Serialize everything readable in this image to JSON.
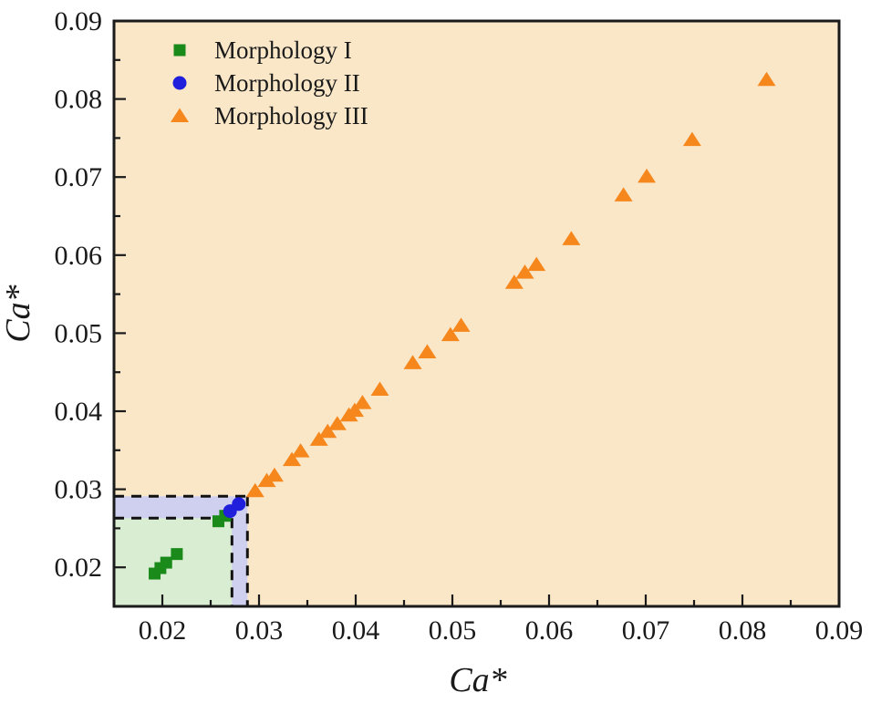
{
  "figure": {
    "background": "#FFFFFF",
    "axis_color": "#1A1A1A",
    "dashed_border_color": "#111111"
  },
  "chart_data": {
    "type": "scatter",
    "title": "",
    "xlabel": "Ca*",
    "ylabel": "Ca*",
    "xlim": [
      0.015,
      0.09
    ],
    "ylim": [
      0.015,
      0.09
    ],
    "x_ticks": [
      "0.02",
      "0.03",
      "0.04",
      "0.05",
      "0.06",
      "0.07",
      "0.08",
      "0.09"
    ],
    "x_tick_values": [
      0.02,
      0.03,
      0.04,
      0.05,
      0.06,
      0.07,
      0.08,
      0.09
    ],
    "y_ticks": [
      "0.02",
      "0.03",
      "0.04",
      "0.05",
      "0.06",
      "0.07",
      "0.08",
      "0.09"
    ],
    "y_tick_values": [
      0.02,
      0.03,
      0.04,
      0.05,
      0.06,
      0.07,
      0.08,
      0.09
    ],
    "minor_tick_step": 0.005,
    "grid": false,
    "plot_background": "#FAE7C8",
    "legend_position": "top-left-inside",
    "regions": [
      {
        "name": "region-morphology-ii",
        "fill": "#CFD0F0",
        "x_max": 0.0288,
        "y_max": 0.0291,
        "border": "dashed"
      },
      {
        "name": "region-morphology-i",
        "fill": "#D9EDD3",
        "x_max": 0.0272,
        "y_max": 0.0263,
        "border": "dashed"
      }
    ],
    "series": [
      {
        "name": "Morphology I",
        "key": "morphology-i",
        "marker": "square",
        "color": "#1A8A1A",
        "points": [
          [
            0.0192,
            0.0192
          ],
          [
            0.0198,
            0.0199
          ],
          [
            0.0204,
            0.0206
          ],
          [
            0.0215,
            0.0217
          ],
          [
            0.0258,
            0.0259
          ],
          [
            0.0265,
            0.0266
          ]
        ]
      },
      {
        "name": "Morphology II",
        "key": "morphology-ii",
        "marker": "circle",
        "color": "#1F1FDC",
        "points": [
          [
            0.027,
            0.0272
          ],
          [
            0.0279,
            0.0281
          ]
        ]
      },
      {
        "name": "Morphology III",
        "key": "morphology-iii",
        "marker": "triangle",
        "color": "#F6871C",
        "points": [
          [
            0.0296,
            0.0298
          ],
          [
            0.0308,
            0.0311
          ],
          [
            0.0316,
            0.0318
          ],
          [
            0.0334,
            0.0338
          ],
          [
            0.0343,
            0.0349
          ],
          [
            0.0362,
            0.0364
          ],
          [
            0.0371,
            0.0374
          ],
          [
            0.0381,
            0.0384
          ],
          [
            0.0393,
            0.0395
          ],
          [
            0.0399,
            0.0401
          ],
          [
            0.0407,
            0.0411
          ],
          [
            0.0425,
            0.0428
          ],
          [
            0.0459,
            0.0462
          ],
          [
            0.0474,
            0.0476
          ],
          [
            0.0498,
            0.0498
          ],
          [
            0.0509,
            0.051
          ],
          [
            0.0564,
            0.0565
          ],
          [
            0.0575,
            0.0578
          ],
          [
            0.0587,
            0.0588
          ],
          [
            0.0623,
            0.0621
          ],
          [
            0.0677,
            0.0677
          ],
          [
            0.0701,
            0.0701
          ],
          [
            0.0748,
            0.0748
          ],
          [
            0.0825,
            0.0825
          ]
        ]
      }
    ]
  }
}
